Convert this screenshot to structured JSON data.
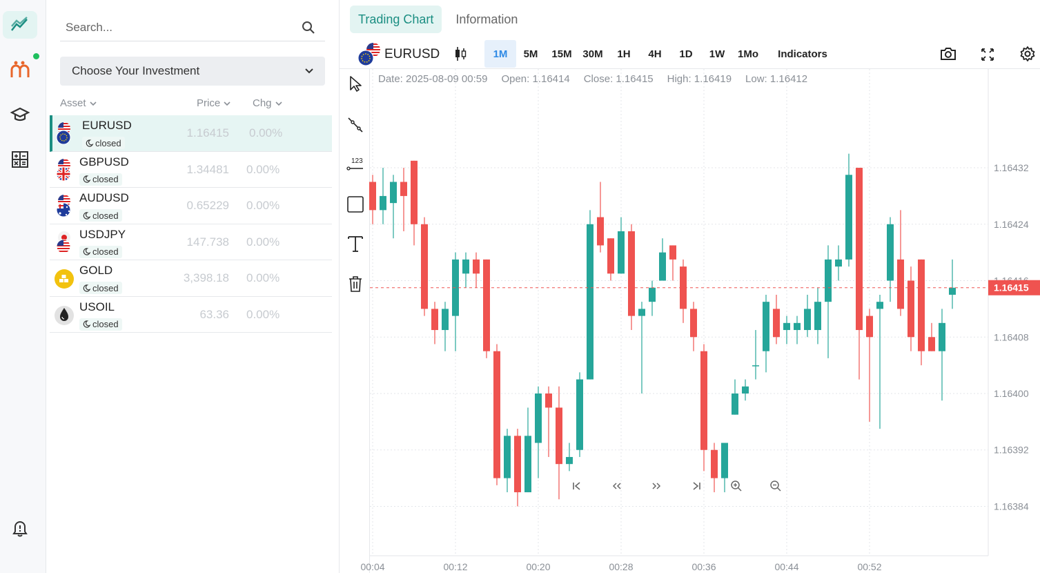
{
  "rail": {
    "items": [
      {
        "name": "chart-icon",
        "active": true
      },
      {
        "name": "brand-logo-icon",
        "active": false,
        "badge": true
      },
      {
        "name": "education-icon",
        "active": false
      },
      {
        "name": "calculator-icon",
        "active": false
      },
      {
        "name": "bell-icon",
        "active": false
      }
    ]
  },
  "panel": {
    "search_placeholder": "Search...",
    "select_label": "Choose Your Investment",
    "columns": {
      "asset": "Asset",
      "price": "Price",
      "chg": "Chg"
    },
    "assets": [
      {
        "symbol": "EURUSD",
        "status": "closed",
        "price": "1.16415",
        "chg": "0.00%",
        "selected": true,
        "flag": "eu-us"
      },
      {
        "symbol": "GBPUSD",
        "status": "closed",
        "price": "1.34481",
        "chg": "0.00%",
        "selected": false,
        "flag": "gb-us"
      },
      {
        "symbol": "AUDUSD",
        "status": "closed",
        "price": "0.65229",
        "chg": "0.00%",
        "selected": false,
        "flag": "au-us"
      },
      {
        "symbol": "USDJPY",
        "status": "closed",
        "price": "147.738",
        "chg": "0.00%",
        "selected": false,
        "flag": "us-jp"
      },
      {
        "symbol": "GOLD",
        "status": "closed",
        "price": "3,398.18",
        "chg": "0.00%",
        "selected": false,
        "flag": "gold"
      },
      {
        "symbol": "USOIL",
        "status": "closed",
        "price": "63.36",
        "chg": "0.00%",
        "selected": false,
        "flag": "oil"
      }
    ]
  },
  "tabs": [
    {
      "label": "Trading Chart",
      "active": true
    },
    {
      "label": "Information",
      "active": false
    }
  ],
  "toolbar": {
    "symbol": "EURUSD",
    "timeframes": [
      "1M",
      "5M",
      "15M",
      "30M",
      "1H",
      "4H",
      "1D",
      "1W",
      "1Mo"
    ],
    "active_timeframe": "1M",
    "indicators_label": "Indicators"
  },
  "ohlc": {
    "date": "Date: 2025-08-09 00:59",
    "open": "Open: 1.16414",
    "close": "Close: 1.16415",
    "high": "High: 1.16419",
    "low": "Low: 1.16412"
  },
  "colors": {
    "up": "#26a69a",
    "down": "#ef5350",
    "accent": "#1b8e82",
    "price_tag": "#ef5350"
  },
  "chart_data": {
    "type": "candlestick",
    "ylim": [
      1.16377,
      1.16446
    ],
    "y_ticks": [
      "1.16432",
      "1.16424",
      "1.16416",
      "1.16408",
      "1.16400",
      "1.16392",
      "1.16384"
    ],
    "x_tick_labels": [
      "00:04",
      "00:12",
      "00:20",
      "00:28",
      "00:36",
      "00:44",
      "00:52"
    ],
    "current_price": "1.16415",
    "grid": true,
    "candles": [
      [
        1.1643,
        1.16426,
        1.16431,
        1.16424
      ],
      [
        1.16426,
        1.16428,
        1.16432,
        1.16424
      ],
      [
        1.16427,
        1.1643,
        1.16431,
        1.16422
      ],
      [
        1.1643,
        1.16428,
        1.16432,
        1.16423
      ],
      [
        1.16433,
        1.16424,
        1.16433,
        1.16421
      ],
      [
        1.16424,
        1.16412,
        1.16425,
        1.16411
      ],
      [
        1.16412,
        1.16409,
        1.16413,
        1.16407
      ],
      [
        1.16409,
        1.16412,
        1.16413,
        1.16406
      ],
      [
        1.16411,
        1.16419,
        1.1642,
        1.16406
      ],
      [
        1.16417,
        1.16419,
        1.1642,
        1.16415
      ],
      [
        1.16419,
        1.16417,
        1.1642,
        1.16415
      ],
      [
        1.16419,
        1.16406,
        1.16419,
        1.16405
      ],
      [
        1.16406,
        1.16388,
        1.16407,
        1.16387
      ],
      [
        1.16388,
        1.16394,
        1.16395,
        1.16386
      ],
      [
        1.16394,
        1.16386,
        1.16395,
        1.16384
      ],
      [
        1.16386,
        1.16394,
        1.16398,
        1.16386
      ],
      [
        1.16393,
        1.164,
        1.16401,
        1.16388
      ],
      [
        1.164,
        1.16398,
        1.16401,
        1.16391
      ],
      [
        1.16398,
        1.1639,
        1.16401,
        1.16385
      ],
      [
        1.1639,
        1.16391,
        1.16393,
        1.16389
      ],
      [
        1.16392,
        1.16402,
        1.16403,
        1.16391
      ],
      [
        1.16402,
        1.16424,
        1.16426,
        1.16402
      ],
      [
        1.16425,
        1.16421,
        1.1643,
        1.1642
      ],
      [
        1.16422,
        1.16417,
        1.16422,
        1.16416
      ],
      [
        1.16417,
        1.16423,
        1.16425,
        1.16417
      ],
      [
        1.16423,
        1.16411,
        1.16424,
        1.16409
      ],
      [
        1.16411,
        1.16412,
        1.16413,
        1.164
      ],
      [
        1.16413,
        1.16415,
        1.16416,
        1.16411
      ],
      [
        1.16416,
        1.1642,
        1.16422,
        1.16416
      ],
      [
        1.16421,
        1.16419,
        1.16421,
        1.16416
      ],
      [
        1.16418,
        1.16412,
        1.16419,
        1.1641
      ],
      [
        1.16412,
        1.16408,
        1.16413,
        1.16406
      ],
      [
        1.16406,
        1.16392,
        1.16407,
        1.16389
      ],
      [
        1.16392,
        1.16388,
        1.16393,
        1.16386
      ],
      [
        1.16388,
        1.16393,
        1.16393,
        1.16386
      ],
      [
        1.16397,
        1.164,
        1.16402,
        1.16397
      ],
      [
        1.164,
        1.16401,
        1.16402,
        1.16399
      ],
      [
        1.16404,
        1.16404,
        1.16409,
        1.16402
      ],
      [
        1.16406,
        1.16413,
        1.16414,
        1.16403
      ],
      [
        1.16412,
        1.16408,
        1.16414,
        1.16407
      ],
      [
        1.16409,
        1.1641,
        1.16411,
        1.16407
      ],
      [
        1.16409,
        1.1641,
        1.16411,
        1.16407
      ],
      [
        1.16409,
        1.16412,
        1.16414,
        1.16408
      ],
      [
        1.16409,
        1.16413,
        1.16415,
        1.16407
      ],
      [
        1.16413,
        1.16419,
        1.16421,
        1.16405
      ],
      [
        1.16418,
        1.16419,
        1.16421,
        1.16416
      ],
      [
        1.16419,
        1.16431,
        1.16434,
        1.16418
      ],
      [
        1.16432,
        1.16409,
        1.16432,
        1.16402
      ],
      [
        1.16411,
        1.16408,
        1.16412,
        1.16396
      ],
      [
        1.16412,
        1.16413,
        1.16414,
        1.16395
      ],
      [
        1.16416,
        1.16424,
        1.16425,
        1.16413
      ],
      [
        1.16419,
        1.16412,
        1.16426,
        1.16411
      ],
      [
        1.16416,
        1.16408,
        1.16418,
        1.16406
      ],
      [
        1.16419,
        1.16406,
        1.16419,
        1.16404
      ],
      [
        1.16408,
        1.16406,
        1.1641,
        1.16406
      ],
      [
        1.16406,
        1.1641,
        1.16412,
        1.16399
      ],
      [
        1.16414,
        1.16415,
        1.16419,
        1.16412
      ]
    ]
  }
}
